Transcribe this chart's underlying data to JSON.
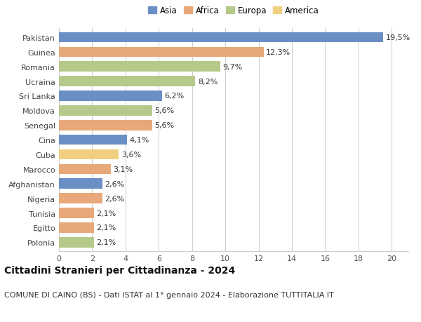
{
  "countries": [
    "Pakistan",
    "Guinea",
    "Romania",
    "Ucraina",
    "Sri Lanka",
    "Moldova",
    "Senegal",
    "Cina",
    "Cuba",
    "Marocco",
    "Afghanistan",
    "Nigeria",
    "Tunisia",
    "Egitto",
    "Polonia"
  ],
  "values": [
    19.5,
    12.3,
    9.7,
    8.2,
    6.2,
    5.6,
    5.6,
    4.1,
    3.6,
    3.1,
    2.6,
    2.6,
    2.1,
    2.1,
    2.1
  ],
  "labels": [
    "19,5%",
    "12,3%",
    "9,7%",
    "8,2%",
    "6,2%",
    "5,6%",
    "5,6%",
    "4,1%",
    "3,6%",
    "3,1%",
    "2,6%",
    "2,6%",
    "2,1%",
    "2,1%",
    "2,1%"
  ],
  "continents": [
    "Asia",
    "Africa",
    "Europa",
    "Europa",
    "Asia",
    "Europa",
    "Africa",
    "Asia",
    "America",
    "Africa",
    "Asia",
    "Africa",
    "Africa",
    "Africa",
    "Europa"
  ],
  "continent_colors": {
    "Asia": "#6a8fc4",
    "Africa": "#e8a97a",
    "Europa": "#b5c98a",
    "America": "#f0d080"
  },
  "legend_order": [
    "Asia",
    "Africa",
    "Europa",
    "America"
  ],
  "xlim": [
    0,
    21
  ],
  "xticks": [
    0,
    2,
    4,
    6,
    8,
    10,
    12,
    14,
    16,
    18,
    20
  ],
  "title": "Cittadini Stranieri per Cittadinanza - 2024",
  "subtitle": "COMUNE DI CAINO (BS) - Dati ISTAT al 1° gennaio 2024 - Elaborazione TUTTITALIA.IT",
  "title_fontsize": 10,
  "subtitle_fontsize": 8,
  "label_fontsize": 8,
  "tick_fontsize": 8,
  "legend_fontsize": 8.5,
  "bar_height": 0.7,
  "bg_color": "#ffffff",
  "grid_color": "#cccccc"
}
